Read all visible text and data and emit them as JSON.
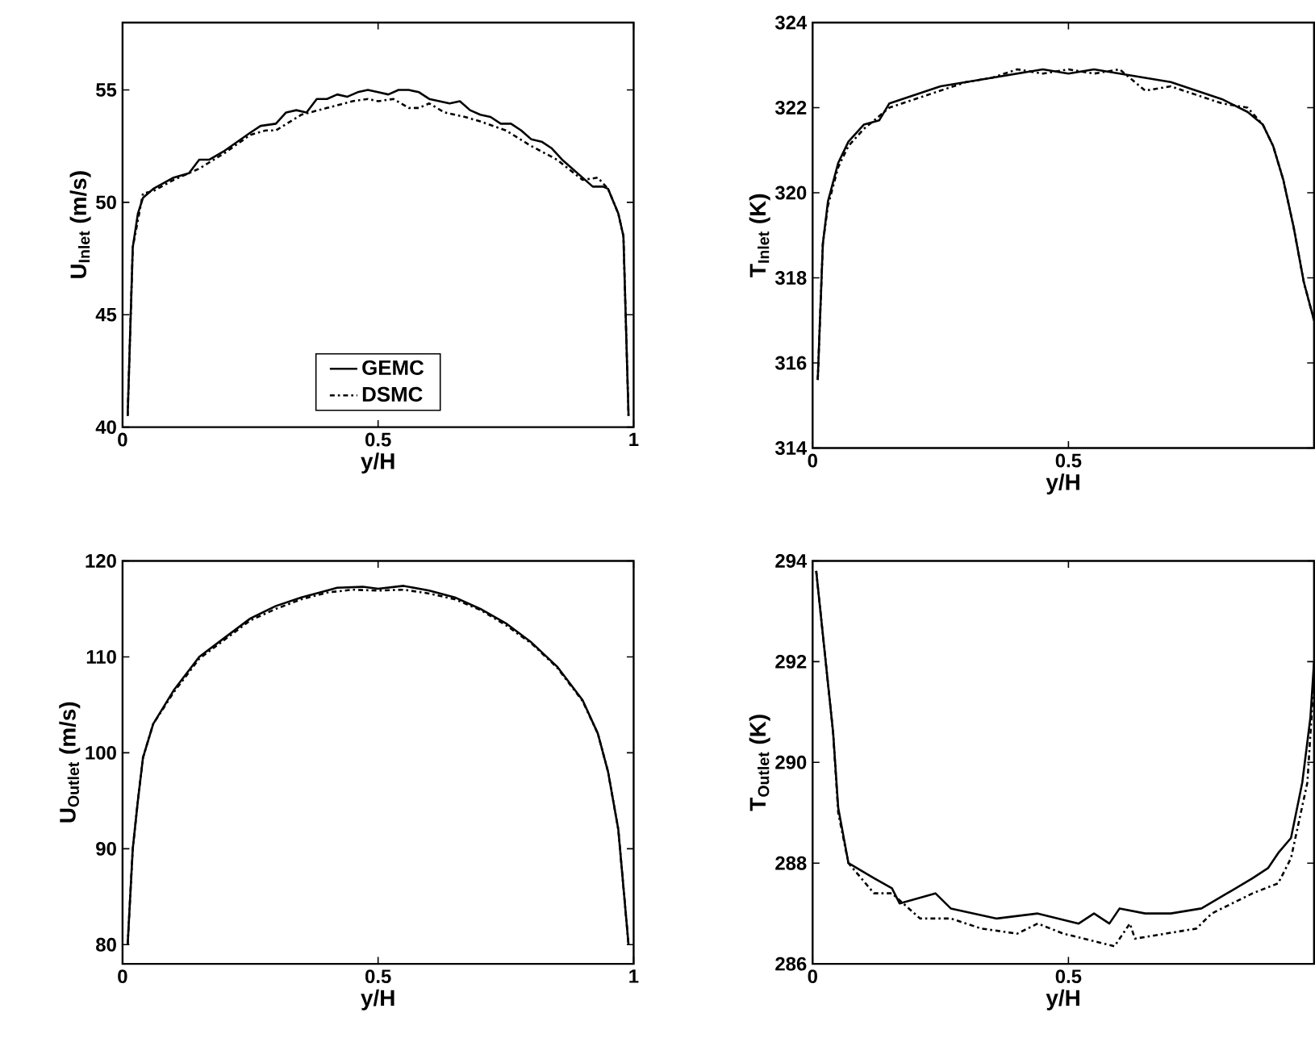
{
  "chart_data": [
    {
      "type": "line",
      "xlabel": "y/H",
      "ylabel": "U$_{Inlet}$  (m/s)",
      "xlim": [
        0,
        1
      ],
      "ylim": [
        40,
        58
      ],
      "xticks": [
        0,
        0.5,
        1
      ],
      "yticks": [
        40,
        45,
        50,
        55
      ],
      "legend": "bottom",
      "series": [
        {
          "name": "GEMC",
          "color": "#000000",
          "line_style": "solid",
          "x": [
            0.01,
            0.02,
            0.03,
            0.04,
            0.06,
            0.1,
            0.13,
            0.15,
            0.17,
            0.2,
            0.25,
            0.27,
            0.3,
            0.32,
            0.34,
            0.36,
            0.38,
            0.4,
            0.42,
            0.44,
            0.46,
            0.48,
            0.5,
            0.52,
            0.54,
            0.56,
            0.58,
            0.6,
            0.62,
            0.64,
            0.66,
            0.68,
            0.7,
            0.72,
            0.74,
            0.76,
            0.78,
            0.8,
            0.82,
            0.84,
            0.86,
            0.88,
            0.9,
            0.92,
            0.94,
            0.95,
            0.97,
            0.98,
            0.99
          ],
          "values": [
            40.5,
            48,
            49.5,
            50.2,
            50.6,
            51.1,
            51.3,
            51.9,
            51.9,
            52.3,
            53.1,
            53.4,
            53.5,
            54.0,
            54.1,
            54.0,
            54.6,
            54.6,
            54.8,
            54.7,
            54.9,
            55.0,
            54.9,
            54.8,
            55.0,
            55.0,
            54.9,
            54.6,
            54.5,
            54.4,
            54.5,
            54.1,
            53.9,
            53.8,
            53.5,
            53.5,
            53.2,
            52.8,
            52.7,
            52.4,
            51.9,
            51.5,
            51.1,
            50.7,
            50.7,
            50.6,
            49.5,
            48.5,
            40.5
          ]
        },
        {
          "name": "DSMC",
          "color": "#000000",
          "line_style": "dashdot",
          "x": [
            0.01,
            0.02,
            0.04,
            0.06,
            0.1,
            0.15,
            0.2,
            0.25,
            0.28,
            0.3,
            0.35,
            0.4,
            0.45,
            0.48,
            0.5,
            0.53,
            0.56,
            0.58,
            0.6,
            0.63,
            0.67,
            0.7,
            0.75,
            0.8,
            0.85,
            0.9,
            0.93,
            0.95,
            0.97,
            0.98,
            0.99
          ],
          "values": [
            40.5,
            48,
            50.4,
            50.5,
            51.0,
            51.5,
            52.2,
            53.0,
            53.2,
            53.2,
            53.9,
            54.2,
            54.5,
            54.6,
            54.5,
            54.6,
            54.2,
            54.2,
            54.4,
            54.0,
            53.8,
            53.6,
            53.2,
            52.5,
            51.9,
            51.0,
            51.1,
            50.6,
            49.5,
            48.5,
            40.5
          ]
        }
      ]
    },
    {
      "type": "line",
      "xlabel": "y/H",
      "ylabel": "T$_{Inlet}$  (K)",
      "xlim": [
        0,
        0.98
      ],
      "ylim": [
        314,
        324
      ],
      "xticks": [
        0,
        0.5
      ],
      "yticks": [
        314,
        316,
        318,
        320,
        322,
        324
      ],
      "series": [
        {
          "color": "#000000",
          "line_style": "solid",
          "x": [
            0.01,
            0.02,
            0.03,
            0.05,
            0.07,
            0.1,
            0.13,
            0.15,
            0.2,
            0.25,
            0.3,
            0.35,
            0.4,
            0.45,
            0.5,
            0.55,
            0.6,
            0.65,
            0.7,
            0.75,
            0.8,
            0.85,
            0.88,
            0.9,
            0.92,
            0.94,
            0.96,
            0.98
          ],
          "values": [
            315.6,
            318.8,
            319.8,
            320.7,
            321.2,
            321.6,
            321.7,
            322.1,
            322.3,
            322.5,
            322.6,
            322.7,
            322.8,
            322.9,
            322.8,
            322.9,
            322.8,
            322.7,
            322.6,
            322.4,
            322.2,
            321.9,
            321.6,
            321.1,
            320.3,
            319.2,
            317.9,
            317.0
          ]
        },
        {
          "color": "#000000",
          "line_style": "dashdot",
          "x": [
            0.01,
            0.02,
            0.03,
            0.05,
            0.07,
            0.1,
            0.13,
            0.15,
            0.2,
            0.25,
            0.3,
            0.35,
            0.4,
            0.45,
            0.5,
            0.55,
            0.6,
            0.65,
            0.7,
            0.75,
            0.8,
            0.85,
            0.88,
            0.9,
            0.92,
            0.94,
            0.96,
            0.98
          ],
          "values": [
            315.6,
            318.8,
            319.7,
            320.6,
            321.1,
            321.5,
            321.8,
            322.0,
            322.2,
            322.4,
            322.6,
            322.7,
            322.9,
            322.8,
            322.9,
            322.8,
            322.9,
            322.4,
            322.5,
            322.3,
            322.1,
            322.0,
            321.6,
            321.1,
            320.3,
            319.2,
            317.9,
            317.0
          ]
        }
      ]
    },
    {
      "type": "line",
      "xlabel": "y/H",
      "ylabel": "U$_{Outlet}$  (m/s)",
      "xlim": [
        0,
        1
      ],
      "ylim": [
        78,
        120
      ],
      "xticks": [
        0,
        0.5,
        1
      ],
      "yticks": [
        80,
        90,
        100,
        110,
        120
      ],
      "series": [
        {
          "color": "#000000",
          "line_style": "solid",
          "x": [
            0.01,
            0.02,
            0.03,
            0.04,
            0.06,
            0.1,
            0.15,
            0.2,
            0.25,
            0.3,
            0.35,
            0.4,
            0.42,
            0.47,
            0.5,
            0.55,
            0.6,
            0.65,
            0.7,
            0.75,
            0.8,
            0.85,
            0.9,
            0.93,
            0.95,
            0.97,
            0.98,
            0.99
          ],
          "values": [
            80,
            90,
            95,
            99.5,
            103,
            106.5,
            110,
            112,
            114,
            115.3,
            116.2,
            116.9,
            117.2,
            117.3,
            117.1,
            117.4,
            116.9,
            116.2,
            115,
            113.5,
            111.5,
            109,
            105.5,
            102,
            98,
            92,
            86,
            80
          ]
        },
        {
          "color": "#000000",
          "line_style": "dashdot",
          "x": [
            0.01,
            0.02,
            0.03,
            0.04,
            0.06,
            0.1,
            0.15,
            0.2,
            0.25,
            0.3,
            0.35,
            0.4,
            0.45,
            0.5,
            0.55,
            0.6,
            0.65,
            0.7,
            0.75,
            0.8,
            0.85,
            0.9,
            0.93,
            0.95,
            0.97,
            0.98,
            0.99
          ],
          "values": [
            80,
            90,
            95,
            99.5,
            103,
            106.3,
            109.8,
            111.8,
            113.8,
            115.0,
            116.0,
            116.7,
            117.0,
            116.9,
            117.0,
            116.6,
            116.0,
            114.9,
            113.3,
            111.4,
            108.9,
            105.4,
            102,
            98,
            92,
            86,
            80
          ]
        }
      ]
    },
    {
      "type": "line",
      "xlabel": "y/H",
      "ylabel": "T$_{Outlet}$  (K)",
      "xlim": [
        0,
        0.98
      ],
      "ylim": [
        286,
        294
      ],
      "xticks": [
        0,
        0.5
      ],
      "yticks": [
        286,
        288,
        290,
        292,
        294
      ],
      "series": [
        {
          "color": "#000000",
          "line_style": "solid",
          "x": [
            0.007,
            0.04,
            0.05,
            0.07,
            0.12,
            0.155,
            0.17,
            0.24,
            0.27,
            0.36,
            0.44,
            0.52,
            0.55,
            0.58,
            0.6,
            0.65,
            0.7,
            0.76,
            0.81,
            0.86,
            0.89,
            0.91,
            0.935,
            0.957,
            0.973,
            0.98
          ],
          "values": [
            293.8,
            290.6,
            289.1,
            288.0,
            287.7,
            287.5,
            287.2,
            287.4,
            287.1,
            286.9,
            287.0,
            286.8,
            287.0,
            286.8,
            287.1,
            287.0,
            287.0,
            287.1,
            287.4,
            287.7,
            287.9,
            288.2,
            288.5,
            289.6,
            290.9,
            292.0
          ]
        },
        {
          "color": "#000000",
          "line_style": "dashdot",
          "x": [
            0.007,
            0.04,
            0.05,
            0.07,
            0.12,
            0.155,
            0.21,
            0.27,
            0.33,
            0.4,
            0.44,
            0.49,
            0.57,
            0.59,
            0.62,
            0.63,
            0.69,
            0.75,
            0.78,
            0.86,
            0.91,
            0.935,
            0.967,
            0.98
          ],
          "values": [
            293.8,
            290.6,
            289.0,
            288.0,
            287.4,
            287.4,
            286.9,
            286.9,
            286.7,
            286.6,
            286.8,
            286.6,
            286.4,
            286.35,
            286.8,
            286.5,
            286.6,
            286.7,
            287.0,
            287.4,
            287.6,
            288.1,
            289.6,
            291.7
          ]
        }
      ]
    }
  ]
}
